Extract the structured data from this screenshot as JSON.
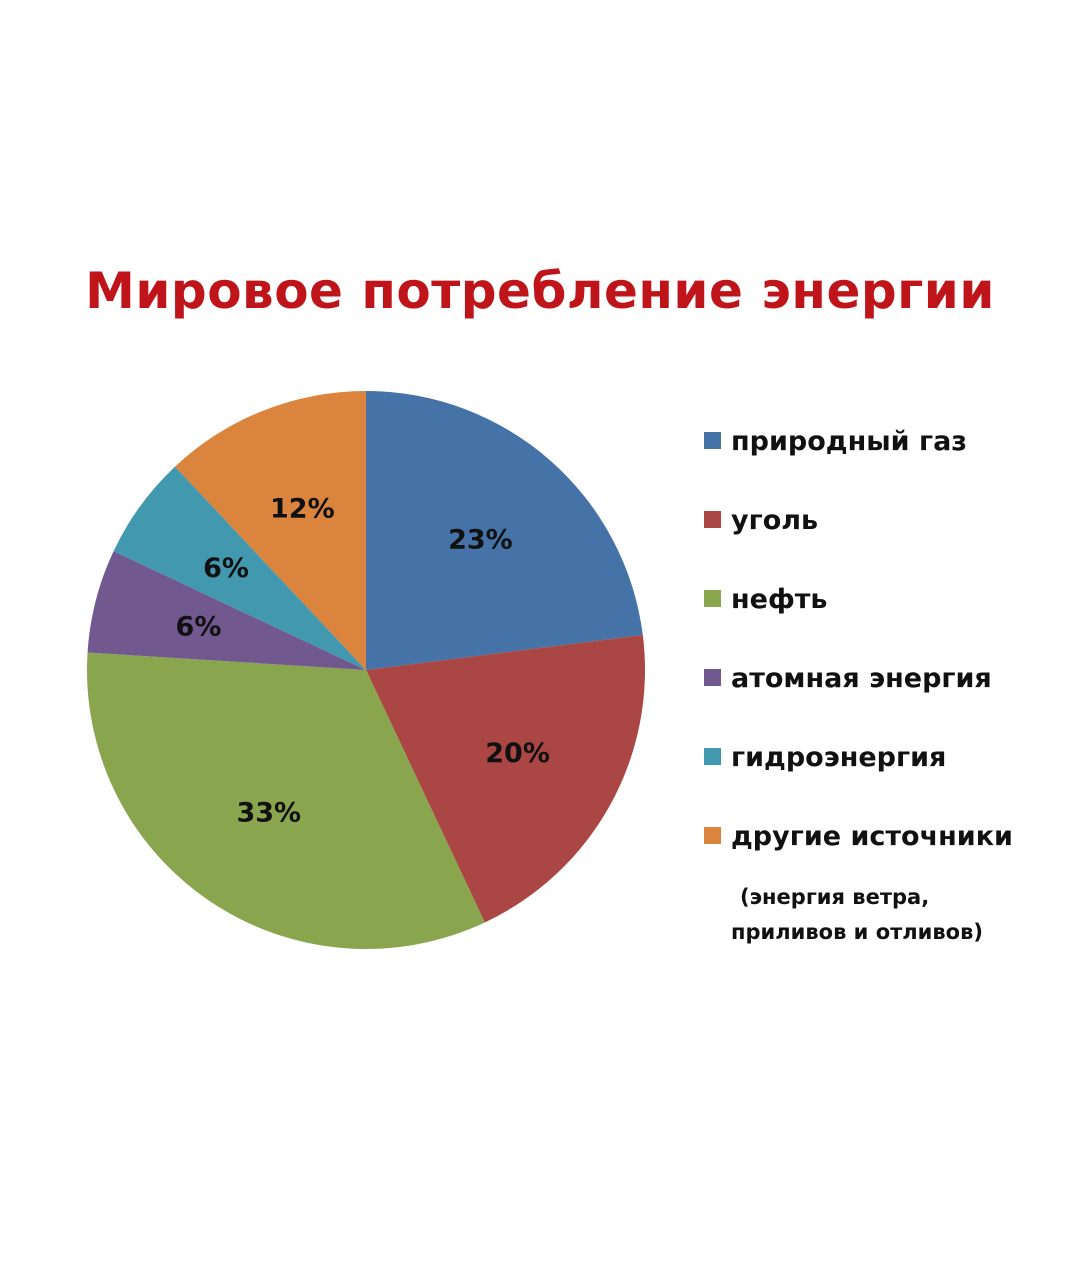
{
  "chart_data": {
    "type": "pie",
    "title": "Мировое потребление энергии",
    "slices": [
      {
        "label": "природный газ",
        "value": 23,
        "value_label": "23%",
        "color": "#4572a7"
      },
      {
        "label": "уголь",
        "value": 20,
        "value_label": "20%",
        "color": "#aa4643"
      },
      {
        "label": "нефть",
        "value": 33,
        "value_label": "33%",
        "color": "#89a54e"
      },
      {
        "label": "атомная энергия",
        "value": 6,
        "value_label": "6%",
        "color": "#71588f"
      },
      {
        "label": "гидроэнергия",
        "value": 6,
        "value_label": "6%",
        "color": "#4198af"
      },
      {
        "label": "другие источники",
        "value": 12,
        "value_label": "12%",
        "color": "#db843d"
      }
    ],
    "legend_note_lines": [
      "(энергия ветра,",
      "приливов и отливов)"
    ],
    "legend_position": "right",
    "start": "top, clockwise"
  }
}
